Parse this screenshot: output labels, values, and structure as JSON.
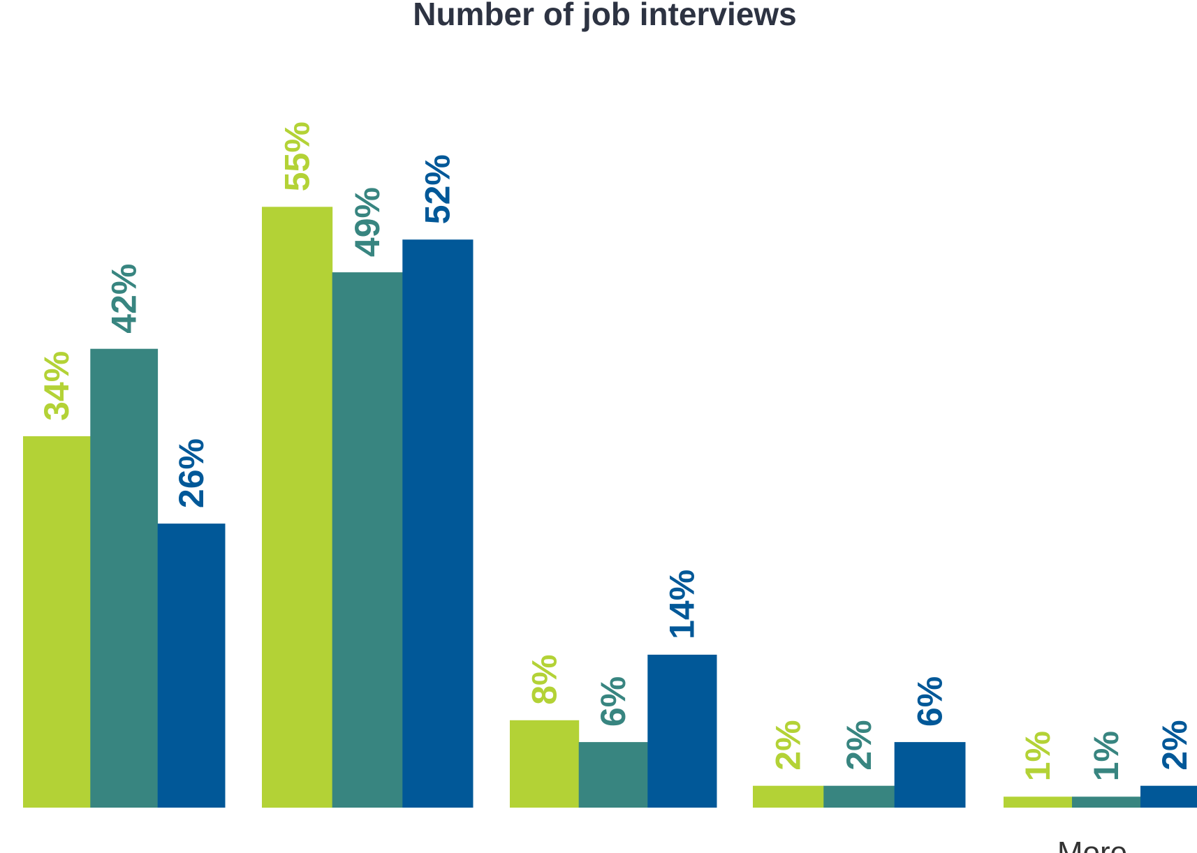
{
  "chart_data": {
    "type": "bar",
    "title": "Number of job interviews",
    "xlabel": "",
    "ylabel": "",
    "categories": [
      "",
      "",
      "",
      "",
      "More"
    ],
    "series": [
      {
        "color": "#b3d236",
        "values": [
          34,
          55,
          8,
          2,
          1
        ]
      },
      {
        "color": "#388580",
        "values": [
          42,
          49,
          6,
          2,
          1
        ]
      },
      {
        "color": "#015898",
        "values": [
          26,
          52,
          14,
          6,
          2
        ]
      }
    ],
    "value_suffix": "%",
    "ylim": [
      0,
      60
    ],
    "grid": false,
    "legend": "none"
  }
}
